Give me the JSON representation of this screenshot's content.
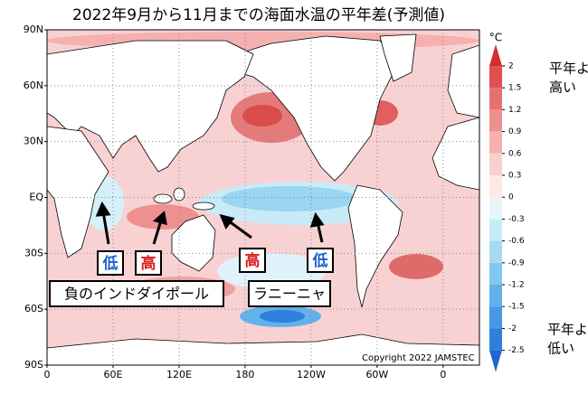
{
  "title": "2022年9月から11月までの海面水温の平年差(予測値)",
  "map": {
    "latlim": [
      -90,
      90
    ],
    "lonlim": [
      0,
      393
    ],
    "lat_ticks": [
      {
        "value": 90,
        "label": "90N"
      },
      {
        "value": 60,
        "label": "60N"
      },
      {
        "value": 30,
        "label": "30N"
      },
      {
        "value": 0,
        "label": "EQ"
      },
      {
        "value": -30,
        "label": "30S"
      },
      {
        "value": -60,
        "label": "60S"
      },
      {
        "value": -90,
        "label": "90S"
      }
    ],
    "lon_ticks": [
      0,
      {
        "value": 60,
        "label": "60E"
      },
      {
        "value": 120,
        "label": "120E"
      },
      180,
      {
        "value": 240,
        "label": "120W"
      },
      {
        "value": 300,
        "label": "60W"
      },
      {
        "value": 360,
        "label": "0"
      }
    ],
    "grid": true
  },
  "colorbar": {
    "unit": "°C",
    "ticks": [
      2,
      1.5,
      1.2,
      0.9,
      0.6,
      0.3,
      0,
      -0.3,
      -0.6,
      -0.9,
      -1.2,
      -1.5,
      -2,
      -2.5
    ],
    "colors": [
      "#d42e2e",
      "#e05050",
      "#e87070",
      "#ef9090",
      "#f5b0b0",
      "#f9cfcf",
      "#fde8e8",
      "#e6f6fb",
      "#c8ebf7",
      "#a5dbf2",
      "#82c7ee",
      "#62b1ea",
      "#4698e4",
      "#2f80dc",
      "#1e66d2"
    ]
  },
  "legend_high": [
    "平年より",
    "高い"
  ],
  "legend_low": [
    "平年より",
    "低い"
  ],
  "annotations": {
    "markers": [
      {
        "text": "低",
        "color": "#1a5fd0"
      },
      {
        "text": "高",
        "color": "#e01b1b"
      },
      {
        "text": "高",
        "color": "#e01b1b"
      },
      {
        "text": "低",
        "color": "#1a5fd0"
      }
    ],
    "labels": [
      "負のインドダイポール",
      "ラニーニャ"
    ]
  },
  "copyright": "Copyright 2022 JAMSTEC"
}
